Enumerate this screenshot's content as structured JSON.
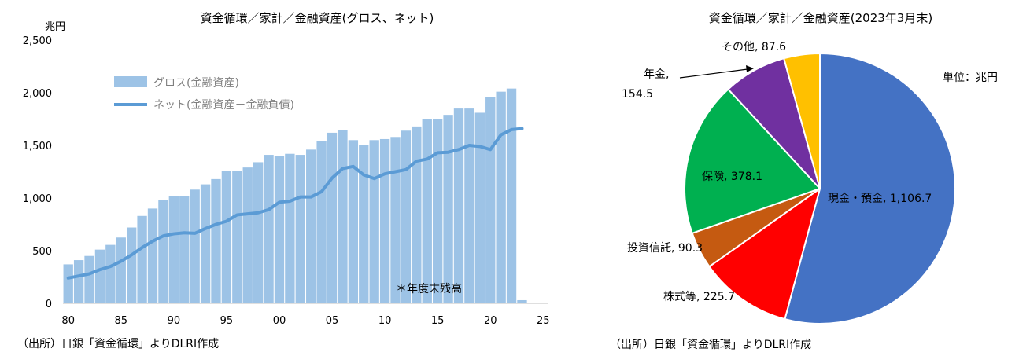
{
  "chart_data": [
    {
      "type": "bar",
      "title": "資金循環／家計／金融資産(グロス、ネット)",
      "ylabel": "兆円",
      "ylim": [
        0,
        2500
      ],
      "yticks": [
        "0",
        "500",
        "1,000",
        "1,500",
        "2,000",
        "2,500"
      ],
      "xlim": [
        1979.5,
        2025.5
      ],
      "xticks": [
        {
          "x": 1980,
          "label": "80"
        },
        {
          "x": 1985,
          "label": "85"
        },
        {
          "x": 1990,
          "label": "90"
        },
        {
          "x": 1995,
          "label": "95"
        },
        {
          "x": 2000,
          "label": "00"
        },
        {
          "x": 2005,
          "label": "05"
        },
        {
          "x": 2010,
          "label": "10"
        },
        {
          "x": 2015,
          "label": "15"
        },
        {
          "x": 2020,
          "label": "20"
        },
        {
          "x": 2025,
          "label": "25"
        }
      ],
      "grid": false,
      "legend_position": "top-left",
      "note": "＊年度末残高",
      "source": "（出所）日銀「資金循環」よりDLRI作成",
      "x": [
        1980,
        1981,
        1982,
        1983,
        1984,
        1985,
        1986,
        1987,
        1988,
        1989,
        1990,
        1991,
        1992,
        1993,
        1994,
        1995,
        1996,
        1997,
        1998,
        1999,
        2000,
        2001,
        2002,
        2003,
        2004,
        2005,
        2006,
        2007,
        2008,
        2009,
        2010,
        2011,
        2012,
        2013,
        2014,
        2015,
        2016,
        2017,
        2018,
        2019,
        2020,
        2021,
        2022,
        2023
      ],
      "series": [
        {
          "name": "グロス(金融資産)",
          "kind": "bar",
          "color": "#9dc3e6",
          "values": [
            370,
            410,
            450,
            510,
            555,
            625,
            720,
            830,
            900,
            980,
            1020,
            1020,
            1080,
            1130,
            1180,
            1260,
            1260,
            1290,
            1340,
            1410,
            1400,
            1420,
            1410,
            1460,
            1540,
            1620,
            1645,
            1550,
            1500,
            1550,
            1560,
            1580,
            1640,
            1680,
            1750,
            1750,
            1790,
            1850,
            1850,
            1810,
            1960,
            2010,
            2040,
            30
          ]
        },
        {
          "name": "ネット(金融資産－金融負債)",
          "kind": "line",
          "color": "#5b9bd5",
          "values": [
            240,
            260,
            280,
            320,
            350,
            400,
            460,
            530,
            590,
            640,
            660,
            670,
            665,
            710,
            750,
            780,
            840,
            850,
            860,
            890,
            960,
            970,
            1010,
            1010,
            1060,
            1190,
            1280,
            1300,
            1220,
            1185,
            1230,
            1250,
            1270,
            1350,
            1370,
            1430,
            1435,
            1460,
            1500,
            1490,
            1460,
            1600,
            1650,
            1660
          ]
        }
      ]
    },
    {
      "type": "pie",
      "title": "資金循環／家計／金融資産(2023年3月末)",
      "unit_label": "単位：兆円",
      "source": "（出所）日銀「資金循環」よりDLRI作成",
      "slices": [
        {
          "label": "現金・預金",
          "value": 1106.7,
          "text": "現金・預金, 1,106.7",
          "color": "#4472c4"
        },
        {
          "label": "株式等",
          "value": 225.7,
          "text": "株式等, 225.7",
          "color": "#ff0000"
        },
        {
          "label": "投資信託",
          "value": 90.3,
          "text": "投資信託, 90.3",
          "color": "#c55a11"
        },
        {
          "label": "保険",
          "value": 378.1,
          "text": "保険, 378.1",
          "color": "#00b050"
        },
        {
          "label": "年金",
          "value": 154.5,
          "text": "年金, 154.5",
          "line1": "年金,",
          "line2": "154.5",
          "color": "#7030a0"
        },
        {
          "label": "その他",
          "value": 87.6,
          "text": "その他, 87.6",
          "color": "#ffc000"
        }
      ]
    }
  ]
}
